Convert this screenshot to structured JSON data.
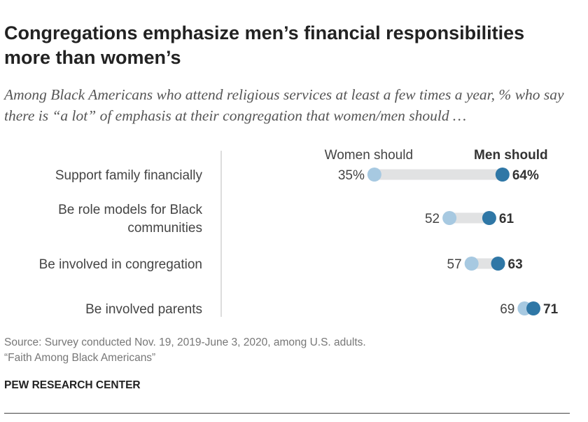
{
  "title": "Congregations emphasize men’s financial responsibilities more than women’s",
  "subtitle": "Among Black Americans who attend religious services at least a few times a year, % who say there is “a lot” of emphasis at their congregation that women/men should …",
  "source": "Source: Survey conducted Nov. 19, 2019-June 3, 2020, among U.S. adults.",
  "report": "“Faith Among Black Americans”",
  "brand": "PEW RESEARCH CENTER",
  "colors": {
    "women": "#a7c9e1",
    "men": "#2f77a6",
    "track": "#e1e2e3"
  },
  "chart_data": {
    "type": "dot",
    "title": "Congregations emphasize men’s financial responsibilities more than women’s",
    "legend": [
      "Women should",
      "Men should"
    ],
    "xlim": [
      0,
      100
    ],
    "categories": [
      [
        "Support family financially"
      ],
      [
        "Be role models for Black",
        "communities"
      ],
      [
        "Be involved in congregation"
      ],
      [
        "Be involved parents"
      ]
    ],
    "series": [
      {
        "name": "Women should",
        "values": [
          35,
          52,
          57,
          69
        ],
        "labels": [
          "35%",
          "52",
          "57",
          "69"
        ]
      },
      {
        "name": "Men should",
        "values": [
          64,
          61,
          63,
          71
        ],
        "labels": [
          "64%",
          "61",
          "63",
          "71"
        ]
      }
    ]
  }
}
